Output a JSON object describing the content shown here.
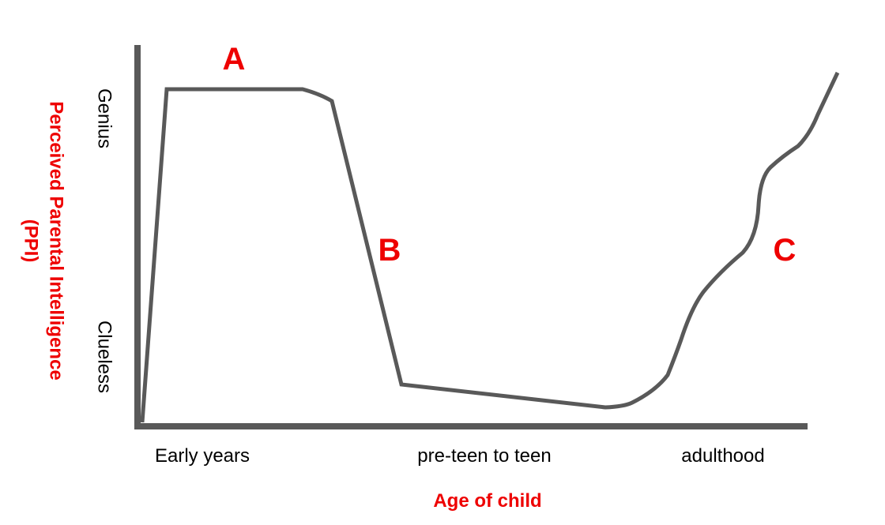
{
  "y_axis": {
    "title": [
      "Perceived Parental Intelligence",
      "(PPI)"
    ],
    "levels": [
      "Genius",
      "Clueless"
    ]
  },
  "x_axis": {
    "title": "Age of child",
    "stages": [
      "Early years",
      "pre-teen to teen",
      "adulthood"
    ]
  },
  "annotations": [
    "A",
    "B",
    "C"
  ]
}
